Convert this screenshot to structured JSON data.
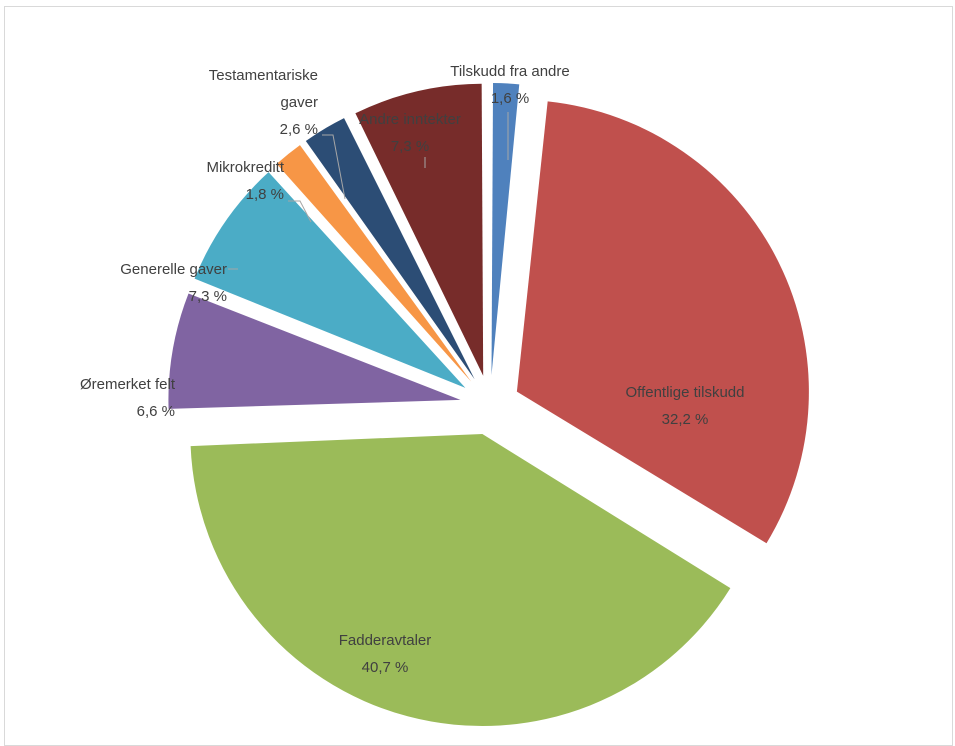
{
  "chart_data": {
    "type": "pie",
    "title": "",
    "slices": [
      {
        "label": "Tilskudd fra andre",
        "value": 1.6,
        "value_text": "1,6 %",
        "color": "#4f81bd"
      },
      {
        "label": "Offentlige tilskudd",
        "value": 32.2,
        "value_text": "32,2 %",
        "color": "#c0504d"
      },
      {
        "label": "Fadderavtaler",
        "value": 40.7,
        "value_text": "40,7 %",
        "color": "#9bbb59"
      },
      {
        "label": "Øremerket felt",
        "value": 6.6,
        "value_text": "6,6 %",
        "color": "#8064a2"
      },
      {
        "label": "Generelle gaver",
        "value": 7.3,
        "value_text": "7,3 %",
        "color": "#4bacc6"
      },
      {
        "label": "Mikrokreditt",
        "value": 1.8,
        "value_text": "1,8 %",
        "color": "#f79646"
      },
      {
        "label": "Testamentariske gaver",
        "value": 2.6,
        "value_text": "2,6 %",
        "color": "#2c4d75"
      },
      {
        "label": "Andre inntekter",
        "value": 7.3,
        "value_text": "7,3 %",
        "color": "#772c2a"
      }
    ],
    "exploded": true,
    "start_angle": "12 o'clock, clockwise",
    "data_labels": "category name and percentage",
    "legend": "none"
  }
}
